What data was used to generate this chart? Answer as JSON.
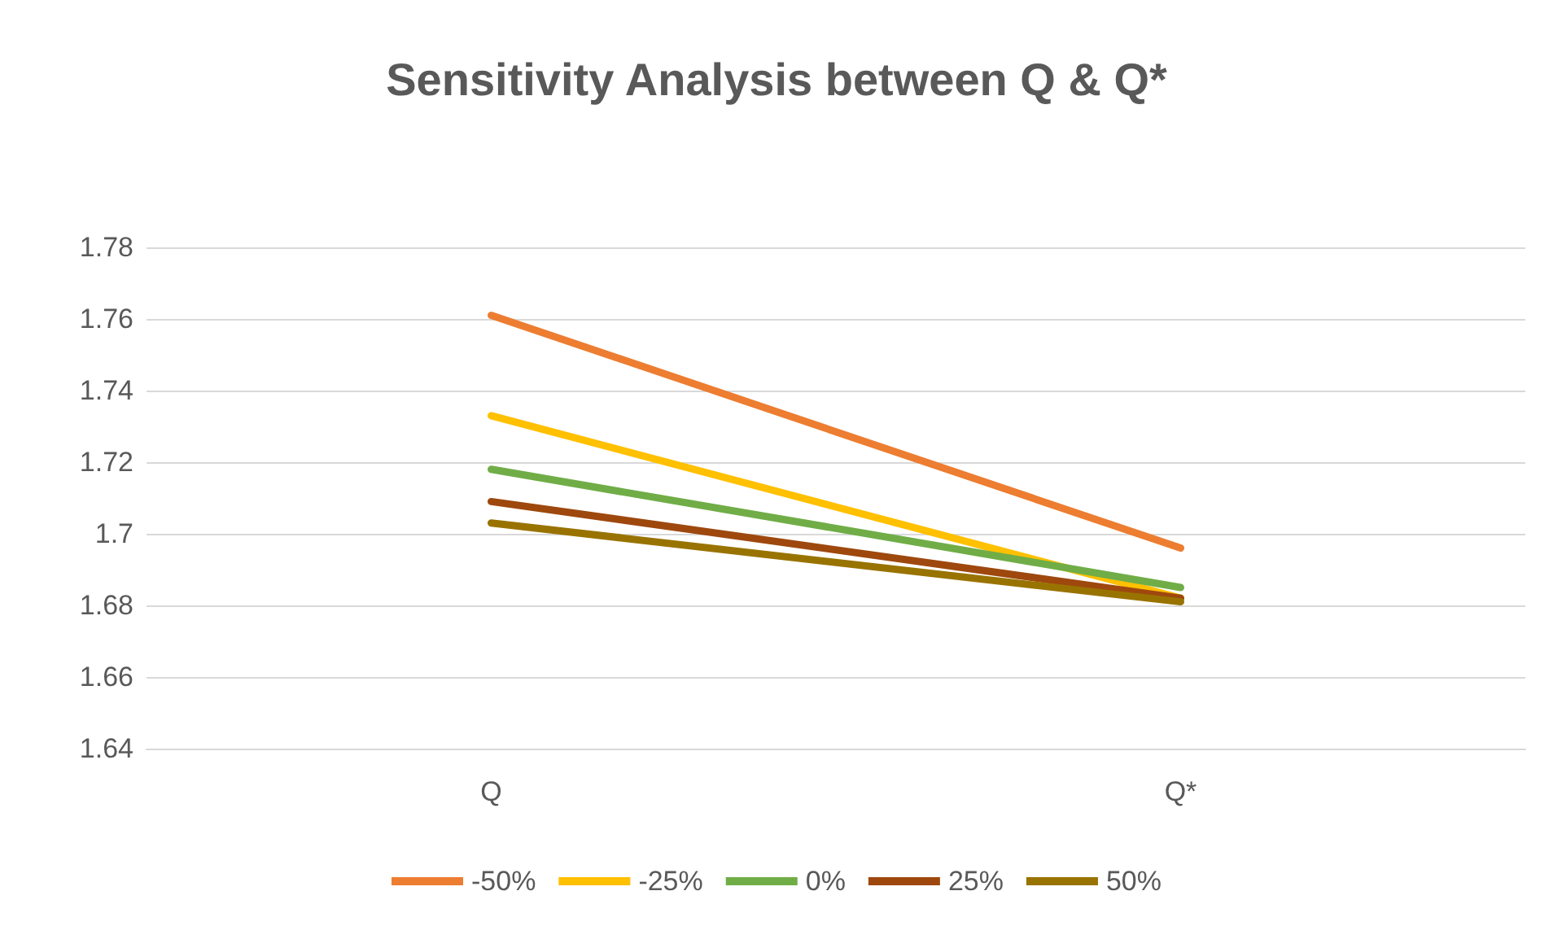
{
  "chart_data": {
    "type": "line",
    "title": "Sensitivity Analysis between Q & Q*",
    "categories": [
      "Q",
      "Q*"
    ],
    "series": [
      {
        "name": "-50%",
        "color": "#ed7d31",
        "values": [
          1.761,
          1.696
        ]
      },
      {
        "name": "-25%",
        "color": "#ffc000",
        "values": [
          1.733,
          1.682
        ]
      },
      {
        "name": "0%",
        "color": "#70ad47",
        "values": [
          1.718,
          1.685
        ]
      },
      {
        "name": "25%",
        "color": "#9e480e",
        "values": [
          1.709,
          1.682
        ]
      },
      {
        "name": "50%",
        "color": "#997300",
        "values": [
          1.703,
          1.681
        ]
      }
    ],
    "ylim": [
      1.64,
      1.78
    ],
    "yticks": [
      1.64,
      1.66,
      1.68,
      1.7,
      1.72,
      1.74,
      1.76,
      1.78
    ],
    "grid": "y",
    "legend": "bottom",
    "marker": "none",
    "line_style": "solid"
  }
}
